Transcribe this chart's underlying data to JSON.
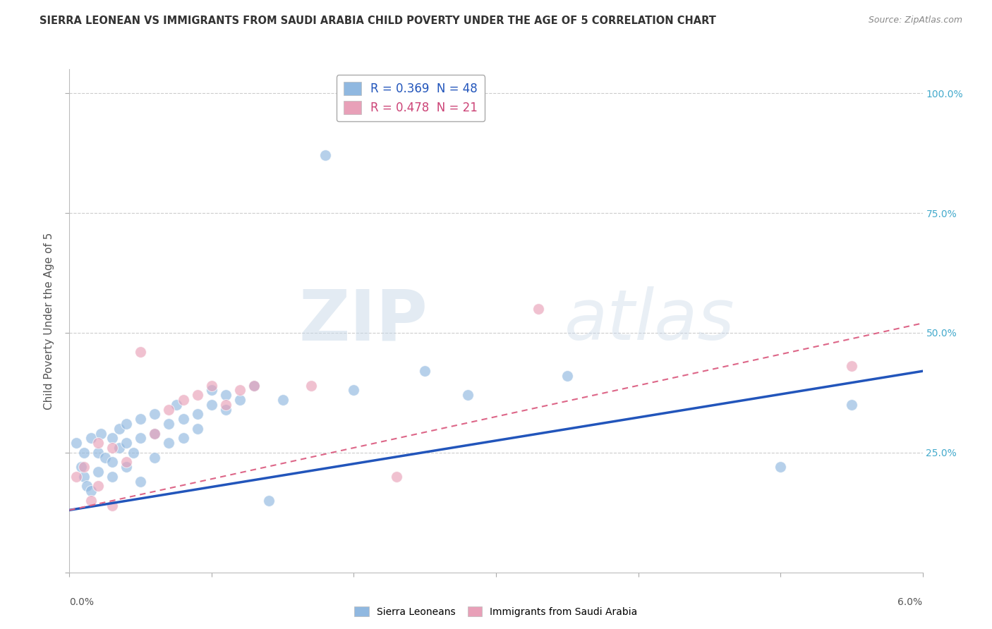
{
  "title": "SIERRA LEONEAN VS IMMIGRANTS FROM SAUDI ARABIA CHILD POVERTY UNDER THE AGE OF 5 CORRELATION CHART",
  "source": "Source: ZipAtlas.com",
  "ylabel": "Child Poverty Under the Age of 5",
  "xlim": [
    0.0,
    0.06
  ],
  "ylim": [
    0.0,
    1.05
  ],
  "ytick_values": [
    0.0,
    0.25,
    0.5,
    0.75,
    1.0
  ],
  "ytick_labels_right": [
    "",
    "25.0%",
    "50.0%",
    "75.0%",
    "100.0%"
  ],
  "sierra_leone_color": "#90b8e0",
  "saudi_color": "#e8a0b8",
  "sierra_leone_line_color": "#2255bb",
  "saudi_line_color": "#dd6688",
  "background_color": "#ffffff",
  "grid_color": "#cccccc",
  "sierra_leoneans_x": [
    0.0005,
    0.0008,
    0.001,
    0.001,
    0.0012,
    0.0015,
    0.0015,
    0.002,
    0.002,
    0.0022,
    0.0025,
    0.003,
    0.003,
    0.003,
    0.0035,
    0.0035,
    0.004,
    0.004,
    0.004,
    0.0045,
    0.005,
    0.005,
    0.005,
    0.006,
    0.006,
    0.006,
    0.007,
    0.007,
    0.0075,
    0.008,
    0.008,
    0.009,
    0.009,
    0.01,
    0.01,
    0.011,
    0.011,
    0.012,
    0.013,
    0.014,
    0.015,
    0.018,
    0.02,
    0.025,
    0.028,
    0.035,
    0.05,
    0.055
  ],
  "sierra_leoneans_y": [
    0.27,
    0.22,
    0.25,
    0.2,
    0.18,
    0.28,
    0.17,
    0.25,
    0.21,
    0.29,
    0.24,
    0.28,
    0.23,
    0.2,
    0.3,
    0.26,
    0.27,
    0.22,
    0.31,
    0.25,
    0.32,
    0.28,
    0.19,
    0.33,
    0.29,
    0.24,
    0.31,
    0.27,
    0.35,
    0.32,
    0.28,
    0.33,
    0.3,
    0.35,
    0.38,
    0.37,
    0.34,
    0.36,
    0.39,
    0.15,
    0.36,
    0.87,
    0.38,
    0.42,
    0.37,
    0.41,
    0.22,
    0.35
  ],
  "saudi_x": [
    0.0005,
    0.001,
    0.0015,
    0.002,
    0.002,
    0.003,
    0.003,
    0.004,
    0.005,
    0.006,
    0.007,
    0.008,
    0.009,
    0.01,
    0.011,
    0.012,
    0.013,
    0.017,
    0.023,
    0.033,
    0.055
  ],
  "saudi_y": [
    0.2,
    0.22,
    0.15,
    0.27,
    0.18,
    0.26,
    0.14,
    0.23,
    0.46,
    0.29,
    0.34,
    0.36,
    0.37,
    0.39,
    0.35,
    0.38,
    0.39,
    0.39,
    0.2,
    0.55,
    0.43
  ],
  "sl_line_x": [
    0.0,
    0.06
  ],
  "sl_line_y": [
    0.13,
    0.42
  ],
  "sa_line_x": [
    0.0,
    0.06
  ],
  "sa_line_y": [
    0.13,
    0.52
  ]
}
